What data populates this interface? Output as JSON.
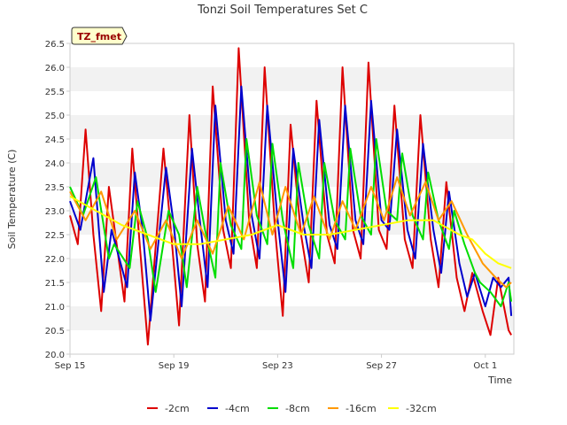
{
  "chart_data": {
    "type": "line",
    "title": "Tonzi Soil Temperatures Set C",
    "xlabel": "Time",
    "ylabel": "Soil Temperature (C)",
    "badge": "TZ_fmet",
    "xlim": [
      0,
      17.1
    ],
    "ylim": [
      20.0,
      26.5
    ],
    "x_ticks": [
      {
        "label": "Sep 15",
        "value": 0
      },
      {
        "label": "Sep 19",
        "value": 4
      },
      {
        "label": "Sep 23",
        "value": 8
      },
      {
        "label": "Sep 27",
        "value": 12
      },
      {
        "label": "Oct 1",
        "value": 16
      }
    ],
    "y_ticks": [
      "20.0",
      "20.5",
      "21.0",
      "21.5",
      "22.0",
      "22.5",
      "23.0",
      "23.5",
      "24.0",
      "24.5",
      "25.0",
      "25.5",
      "26.0",
      "26.5"
    ],
    "grid": "horizontal bands",
    "legend_position": "bottom",
    "series": [
      {
        "name": "-2cm",
        "color": "#dd0000",
        "x": [
          0,
          0.3,
          0.6,
          0.9,
          1.2,
          1.5,
          2.1,
          2.4,
          2.7,
          3.0,
          3.6,
          3.9,
          4.2,
          4.6,
          4.9,
          5.2,
          5.5,
          5.9,
          6.2,
          6.5,
          6.9,
          7.2,
          7.5,
          7.9,
          8.2,
          8.5,
          8.9,
          9.2,
          9.5,
          9.9,
          10.2,
          10.5,
          10.9,
          11.2,
          11.5,
          11.9,
          12.2,
          12.5,
          12.9,
          13.2,
          13.5,
          13.9,
          14.2,
          14.5,
          14.9,
          15.2,
          15.5,
          15.9,
          16.2,
          16.5,
          16.9,
          17.0
        ],
        "values": [
          22.9,
          22.3,
          24.7,
          22.5,
          20.9,
          23.5,
          21.1,
          24.3,
          22.2,
          20.2,
          24.3,
          22.5,
          20.6,
          25.0,
          22.3,
          21.1,
          25.6,
          22.6,
          21.8,
          26.4,
          22.8,
          21.8,
          26.0,
          22.6,
          20.8,
          24.8,
          22.5,
          21.5,
          25.3,
          22.5,
          21.9,
          26.0,
          22.6,
          22.0,
          26.1,
          22.6,
          22.2,
          25.2,
          22.4,
          21.8,
          25.0,
          22.4,
          21.4,
          23.6,
          21.6,
          20.9,
          21.7,
          20.9,
          20.4,
          21.6,
          20.5,
          20.4
        ]
      },
      {
        "name": "-4cm",
        "color": "#0000cc",
        "x": [
          0,
          0.4,
          0.9,
          1.3,
          1.6,
          2.2,
          2.5,
          2.8,
          3.1,
          3.7,
          4.0,
          4.3,
          4.7,
          5.0,
          5.3,
          5.6,
          6.0,
          6.3,
          6.6,
          7.0,
          7.3,
          7.6,
          8.0,
          8.3,
          8.6,
          9.0,
          9.3,
          9.6,
          10.0,
          10.3,
          10.6,
          11.0,
          11.3,
          11.6,
          12.0,
          12.3,
          12.6,
          13.0,
          13.3,
          13.6,
          14.0,
          14.3,
          14.6,
          15.0,
          15.3,
          15.6,
          16.0,
          16.3,
          16.6,
          16.9,
          17.0
        ],
        "values": [
          23.2,
          22.6,
          24.1,
          21.3,
          22.6,
          21.4,
          23.8,
          22.6,
          20.7,
          23.9,
          22.7,
          21.0,
          24.3,
          22.8,
          21.4,
          25.2,
          22.8,
          22.1,
          25.6,
          22.9,
          22.0,
          25.2,
          22.8,
          21.3,
          24.3,
          22.7,
          21.8,
          24.9,
          22.7,
          22.2,
          25.2,
          22.8,
          22.3,
          25.3,
          22.8,
          22.6,
          24.7,
          22.6,
          22.0,
          24.4,
          22.6,
          21.7,
          23.4,
          21.9,
          21.2,
          21.7,
          21.0,
          21.6,
          21.4,
          21.6,
          20.8
        ]
      },
      {
        "name": "-8cm",
        "color": "#00dd00",
        "x": [
          0,
          0.5,
          1.0,
          1.5,
          1.7,
          2.3,
          2.6,
          3.0,
          3.3,
          3.8,
          4.2,
          4.5,
          4.9,
          5.2,
          5.6,
          5.8,
          6.2,
          6.6,
          6.8,
          7.2,
          7.6,
          7.8,
          8.2,
          8.6,
          8.8,
          9.2,
          9.6,
          9.8,
          10.2,
          10.6,
          10.8,
          11.2,
          11.6,
          11.8,
          12.2,
          12.6,
          12.8,
          13.2,
          13.6,
          13.8,
          14.2,
          14.6,
          14.8,
          15.2,
          15.6,
          15.8,
          16.2,
          16.6,
          16.9,
          17.0
        ],
        "values": [
          23.5,
          22.9,
          23.7,
          22.0,
          22.3,
          21.8,
          23.2,
          22.4,
          21.3,
          23.0,
          22.5,
          21.4,
          23.5,
          22.6,
          21.6,
          24.0,
          22.7,
          22.2,
          24.5,
          22.9,
          22.3,
          24.4,
          22.8,
          21.8,
          24.0,
          22.7,
          22.0,
          24.0,
          22.8,
          22.4,
          24.3,
          22.9,
          22.5,
          24.5,
          23.0,
          22.8,
          24.2,
          22.9,
          22.4,
          23.8,
          22.8,
          22.2,
          23.0,
          22.3,
          21.7,
          21.5,
          21.3,
          21.0,
          21.5,
          21.1
        ]
      },
      {
        "name": "-16cm",
        "color": "#ff9900",
        "x": [
          0,
          0.6,
          1.2,
          1.8,
          2.5,
          3.1,
          3.7,
          4.3,
          4.9,
          5.5,
          6.1,
          6.7,
          7.3,
          7.8,
          8.3,
          8.9,
          9.4,
          10.0,
          10.5,
          11.0,
          11.6,
          12.1,
          12.6,
          13.1,
          13.7,
          14.2,
          14.7,
          15.3,
          15.9,
          16.4,
          16.8,
          17.0
        ],
        "values": [
          23.4,
          22.8,
          23.4,
          22.4,
          23.0,
          22.2,
          22.8,
          22.0,
          22.8,
          22.1,
          23.1,
          22.4,
          23.6,
          22.5,
          23.5,
          22.5,
          23.3,
          22.4,
          23.2,
          22.6,
          23.5,
          22.8,
          23.7,
          22.9,
          23.6,
          22.8,
          23.2,
          22.5,
          21.9,
          21.6,
          21.4,
          21.5
        ]
      },
      {
        "name": "-32cm",
        "color": "#ffff00",
        "x": [
          0,
          1.0,
          2.0,
          3.0,
          4.0,
          5.0,
          6.0,
          7.0,
          8.0,
          9.0,
          10.0,
          11.0,
          12.0,
          13.0,
          14.0,
          15.0,
          15.5,
          16.0,
          16.5,
          17.0
        ],
        "values": [
          23.3,
          23.0,
          22.7,
          22.5,
          22.3,
          22.3,
          22.4,
          22.5,
          22.7,
          22.5,
          22.5,
          22.6,
          22.7,
          22.8,
          22.8,
          22.5,
          22.4,
          22.1,
          21.9,
          21.8
        ]
      }
    ]
  }
}
